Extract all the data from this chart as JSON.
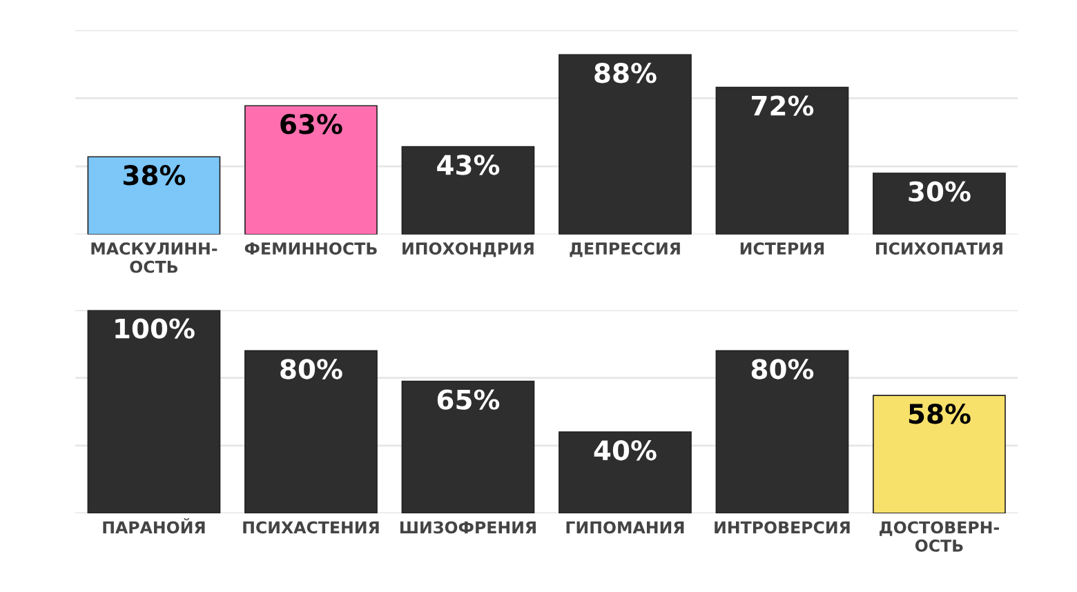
{
  "chart_data": [
    {
      "type": "bar",
      "categories": [
        "МАСКУЛИНН-\nОСТЬ",
        "ФЕМИННОСТЬ",
        "ИПОХОНДРИЯ",
        "ДЕПРЕССИЯ",
        "ИСТЕРИЯ",
        "ПСИХОПАТИЯ"
      ],
      "values": [
        38,
        63,
        43,
        88,
        72,
        30
      ],
      "colors": [
        "#7cc6f8",
        "#ff6fb0",
        "#2e2e2e",
        "#2e2e2e",
        "#2e2e2e",
        "#2e2e2e"
      ],
      "value_labels": [
        "38%",
        "63%",
        "43%",
        "88%",
        "72%",
        "30%"
      ],
      "ylim": [
        0,
        100
      ],
      "yticks": [
        {
          "value": 0,
          "label": null
        },
        {
          "value": 33.3,
          "label": null
        },
        {
          "value": 66.7,
          "label": null
        },
        {
          "value": 100,
          "label": null
        }
      ],
      "grid": "y",
      "tick_labels": "x",
      "legend": false
    },
    {
      "type": "bar",
      "categories": [
        "ПАРАНОЙЯ",
        "ПСИХАСТЕНИЯ",
        "ШИЗОФРЕНИЯ",
        "ГИПОМАНИЯ",
        "ИНТРОВЕРСИЯ",
        "ДОСТОВЕРН-\nОСТЬ"
      ],
      "values": [
        100,
        80,
        65,
        40,
        80,
        58
      ],
      "colors": [
        "#2e2e2e",
        "#2e2e2e",
        "#2e2e2e",
        "#2e2e2e",
        "#2e2e2e",
        "#f7e16a"
      ],
      "value_labels": [
        "100%",
        "80%",
        "65%",
        "40%",
        "80%",
        "58%"
      ],
      "ylim": [
        0,
        100
      ],
      "yticks": [
        {
          "value": 0,
          "label": null
        },
        {
          "value": 33.3,
          "label": null
        },
        {
          "value": 66.7,
          "label": null
        },
        {
          "value": 100,
          "label": null
        }
      ],
      "grid": "y",
      "tick_labels": "x",
      "legend": false
    }
  ]
}
